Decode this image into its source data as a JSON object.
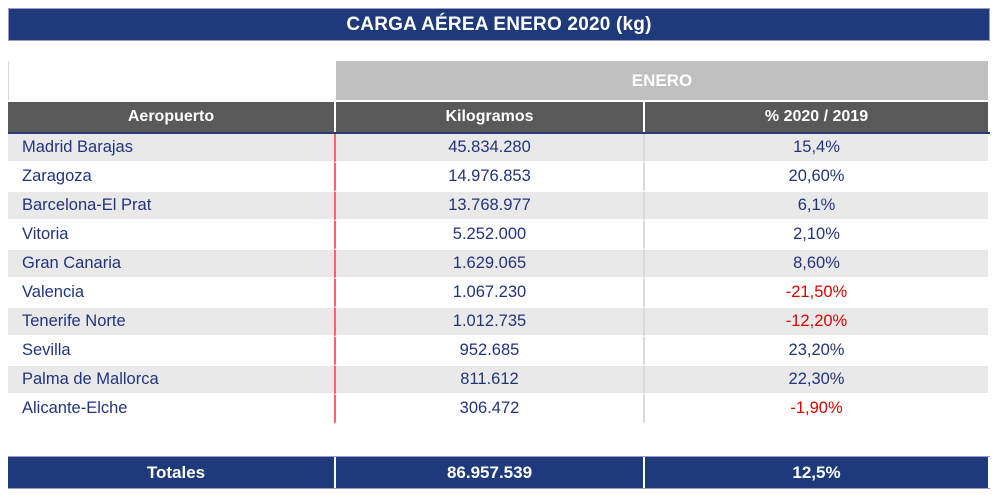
{
  "title": "CARGA AÉREA ENERO 2020 (kg)",
  "table": {
    "group_header": "ENERO",
    "columns": [
      "Aeropuerto",
      "Kilogramos",
      "% 2020 / 2019"
    ],
    "rows": [
      {
        "airport": "Madrid Barajas",
        "kilograms": "45.834.280",
        "pct": "15,4%"
      },
      {
        "airport": "Zaragoza",
        "kilograms": "14.976.853",
        "pct": "20,60%"
      },
      {
        "airport": "Barcelona-El Prat",
        "kilograms": "13.768.977",
        "pct": "6,1%"
      },
      {
        "airport": "Vitoria",
        "kilograms": "5.252.000",
        "pct": "2,10%"
      },
      {
        "airport": "Gran Canaria",
        "kilograms": "1.629.065",
        "pct": "8,60%"
      },
      {
        "airport": "Valencia",
        "kilograms": "1.067.230",
        "pct": "-21,50%"
      },
      {
        "airport": "Tenerife Norte",
        "kilograms": "1.012.735",
        "pct": "-12,20%"
      },
      {
        "airport": "Sevilla",
        "kilograms": "952.685",
        "pct": "23,20%"
      },
      {
        "airport": "Palma de Mallorca",
        "kilograms": "811.612",
        "pct": "22,30%"
      },
      {
        "airport": "Alicante-Elche",
        "kilograms": "306.472",
        "pct": "-1,90%"
      }
    ],
    "totals": {
      "label": "Totales",
      "kilograms": "86.957.539",
      "pct": "12,5%"
    }
  },
  "colors": {
    "navy_bar": "#1e3a7b",
    "text_navy": "#223380",
    "negative_red": "#e00000",
    "row_alt_gray": "#e9e9e9",
    "group_band_gray": "#c0c0c0",
    "header_gray": "#595959",
    "column_divider_red": "#f4695f",
    "column_divider_gray": "#d9d9d9"
  },
  "chart_data": {
    "type": "table",
    "title": "CARGA AÉREA ENERO 2020 (kg)",
    "group_header": "ENERO",
    "columns": [
      "Aeropuerto",
      "Kilogramos",
      "% 2020 / 2019"
    ],
    "rows": [
      [
        "Madrid Barajas",
        "45.834.280",
        "15,4%"
      ],
      [
        "Zaragoza",
        "14.976.853",
        "20,60%"
      ],
      [
        "Barcelona-El Prat",
        "13.768.977",
        "6,1%"
      ],
      [
        "Vitoria",
        "5.252.000",
        "2,10%"
      ],
      [
        "Gran Canaria",
        "1.629.065",
        "8,60%"
      ],
      [
        "Valencia",
        "1.067.230",
        "-21,50%"
      ],
      [
        "Tenerife Norte",
        "1.012.735",
        "-12,20%"
      ],
      [
        "Sevilla",
        "952.685",
        "23,20%"
      ],
      [
        "Palma de Mallorca",
        "811.612",
        "22,30%"
      ],
      [
        "Alicante-Elche",
        "306.472",
        "-1,90%"
      ]
    ],
    "totals": [
      "Totales",
      "86.957.539",
      "12,5%"
    ]
  }
}
